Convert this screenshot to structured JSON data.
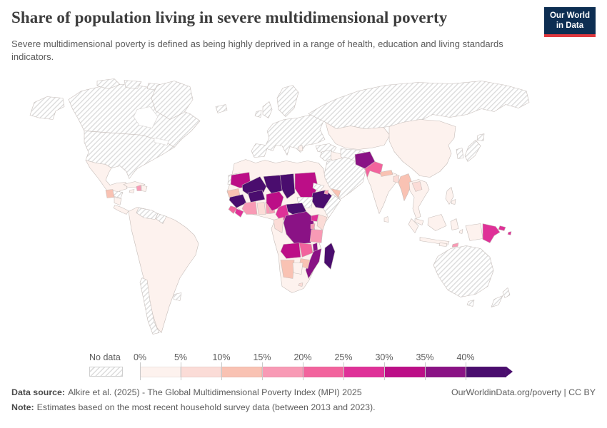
{
  "header": {
    "title": "Share of population living in severe multidimensional poverty",
    "subtitle": "Severe multidimensional poverty is defined as being highly deprived in a range of health, education and living standards indicators.",
    "logo": {
      "line1": "Our World",
      "line2": "in Data",
      "bg_color": "#0d2e52",
      "accent_color": "#e0383e"
    }
  },
  "legend": {
    "no_data_label": "No data"
  },
  "footer": {
    "source_label": "Data source:",
    "source_text": "Alkire et al. (2025) - The Global Multidimensional Poverty Index (MPI) 2025",
    "note_label": "Note:",
    "note_text": "Estimates based on the most recent household survey data (between 2013 and 2023).",
    "credit": "OurWorldinData.org/poverty | CC BY"
  },
  "chart_data": {
    "type": "choropleth",
    "title": "Share of population living in severe multidimensional poverty",
    "unit": "% of population",
    "legend": {
      "no_data_label": "No data",
      "bins": [
        {
          "tick": "0%",
          "range": "0-5%",
          "color": "#fdf2ee"
        },
        {
          "tick": "5%",
          "range": "5-10%",
          "color": "#fbdcd7"
        },
        {
          "tick": "10%",
          "range": "10-15%",
          "color": "#f9c2b3"
        },
        {
          "tick": "15%",
          "range": "15-20%",
          "color": "#f89ab5"
        },
        {
          "tick": "20%",
          "range": "20-25%",
          "color": "#f2639d"
        },
        {
          "tick": "25%",
          "range": "25-30%",
          "color": "#df3198"
        },
        {
          "tick": "30%",
          "range": "30-35%",
          "color": "#bc0e87"
        },
        {
          "tick": "35%",
          "range": "35-40%",
          "color": "#8a1285"
        },
        {
          "tick": "40%",
          "range": "40%+",
          "color": "#4a0d6e"
        }
      ]
    },
    "countries": {
      "canada": "no-data",
      "united-states": "no-data",
      "greenland": "no-data",
      "iceland": "no-data",
      "europe": "no-data",
      "russia": "no-data",
      "turkey": "no-data",
      "syria": "no-data",
      "saudi-arabia": "no-data",
      "iran": "no-data",
      "japan": "no-data",
      "south-korea": "no-data",
      "venezuela": "no-data",
      "guyana": "no-data",
      "chile": "no-data",
      "uruguay": "no-data",
      "honduras": "no-data",
      "australia": "no-data",
      "new-zealand": "no-data",
      "somalia": "no-data",
      "south-sudan": "no-data",
      "eritrea": "no-data",
      "western-sahara": "no-data",
      "mexico": "0-5%",
      "cuba": "0-5%",
      "jamaica": "0-5%",
      "dominican-republic": "0-5%",
      "nicaragua": "0-5%",
      "panama": "0-5%",
      "brazil": "0-5%",
      "colombia": "0-5%",
      "peru": "0-5%",
      "bolivia": "0-5%",
      "argentina": "0-5%",
      "paraguay": "0-5%",
      "ecuador": "0-5%",
      "morocco": "0-5%",
      "algeria": "0-5%",
      "tunisia": "0-5%",
      "libya": "0-5%",
      "egypt": "0-5%",
      "iraq": "0-5%",
      "south-africa": "0-5%",
      "botswana": "0-5%",
      "albania": "0-5%",
      "kazakhstan": "0-5%",
      "turkmenistan": "0-5%",
      "uzbekistan": "0-5%",
      "china": "0-5%",
      "mongolia": "0-5%",
      "india": "0-5%",
      "thailand": "0-5%",
      "vietnam": "0-5%",
      "cambodia": "0-5%",
      "malaysia": "0-5%",
      "indonesia": "0-5%",
      "philippines": "0-5%",
      "sri-lanka": "0-5%",
      "ghana": "5-10%",
      "kenya": "5-10%",
      "congo": "5-10%",
      "laos": "5-10%",
      "bangladesh": "5-10%",
      "lesotho": "5-10%",
      "guatemala": "10-15%",
      "nepal": "10-15%",
      "myanmar": "10-15%",
      "senegal": "10-15%",
      "namibia": "10-15%",
      "yemen": "10-15%",
      "zimbabwe": "10-15%",
      "haiti": "15-20%",
      "cote-divoire": "15-20%",
      "togo": "15-20%",
      "benin": "15-20%",
      "tanzania": "15-20%",
      "rwanda": "15-20%",
      "timor-leste": "15-20%",
      "djibouti": "15-20%",
      "pakistan": "20-25%",
      "sierra-leone": "20-25%",
      "zambia": "20-25%",
      "liberia": "25-30%",
      "cameroon": "25-30%",
      "uganda": "25-30%",
      "papua-new-guinea": "25-30%",
      "nigeria": "30-35%",
      "sudan": "30-35%",
      "angola": "30-35%",
      "mauritania": "30-35%",
      "afghanistan": "35-40%",
      "democratic-republic-of-congo": "35-40%",
      "mozambique": "35-40%",
      "malawi": "35-40%",
      "mali": "40%+",
      "niger": "40%+",
      "chad": "40%+",
      "burkina-faso": "40%+",
      "guinea": "40%+",
      "ethiopia": "40%+",
      "central-african-republic": "40%+",
      "madagascar": "40%+"
    }
  }
}
